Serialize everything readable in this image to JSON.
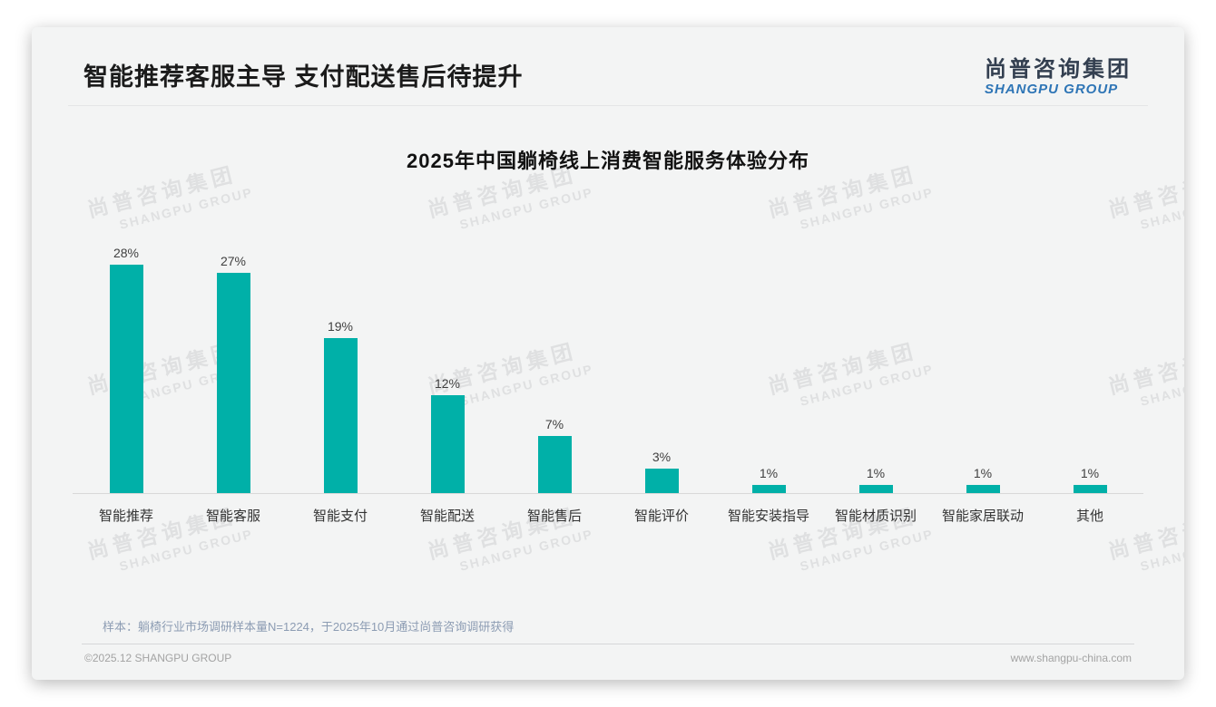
{
  "header": {
    "title": "智能推荐客服主导 支付配送售后待提升",
    "logo_cn": "尚普咨询集团",
    "logo_en": "SHANGPU GROUP"
  },
  "chart_data": {
    "type": "bar",
    "title": "2025年中国躺椅线上消费智能服务体验分布",
    "categories": [
      "智能推荐",
      "智能客服",
      "智能支付",
      "智能配送",
      "智能售后",
      "智能评价",
      "智能安装指导",
      "智能材质识别",
      "智能家居联动",
      "其他"
    ],
    "values": [
      28,
      27,
      19,
      12,
      7,
      3,
      1,
      1,
      1,
      1
    ],
    "value_suffix": "%",
    "bar_color": "#00b0a8",
    "ylim": [
      0,
      30
    ],
    "grid": false,
    "legend": "none",
    "xlabel": "",
    "ylabel": ""
  },
  "watermark": {
    "cn": "尚普咨询集团",
    "en": "SHANGPU GROUP"
  },
  "footer": {
    "source_note": "样本：躺椅行业市场调研样本量N=1224，于2025年10月通过尚普咨询调研获得",
    "copyright": "©2025.12 SHANGPU GROUP",
    "website": "www.shangpu-china.com"
  },
  "colors": {
    "bar": "#00b0a8",
    "card_background": "#f3f4f4",
    "logo_cn": "#333f50",
    "logo_en": "#2e75b6",
    "note_text": "#8c9cb3"
  }
}
